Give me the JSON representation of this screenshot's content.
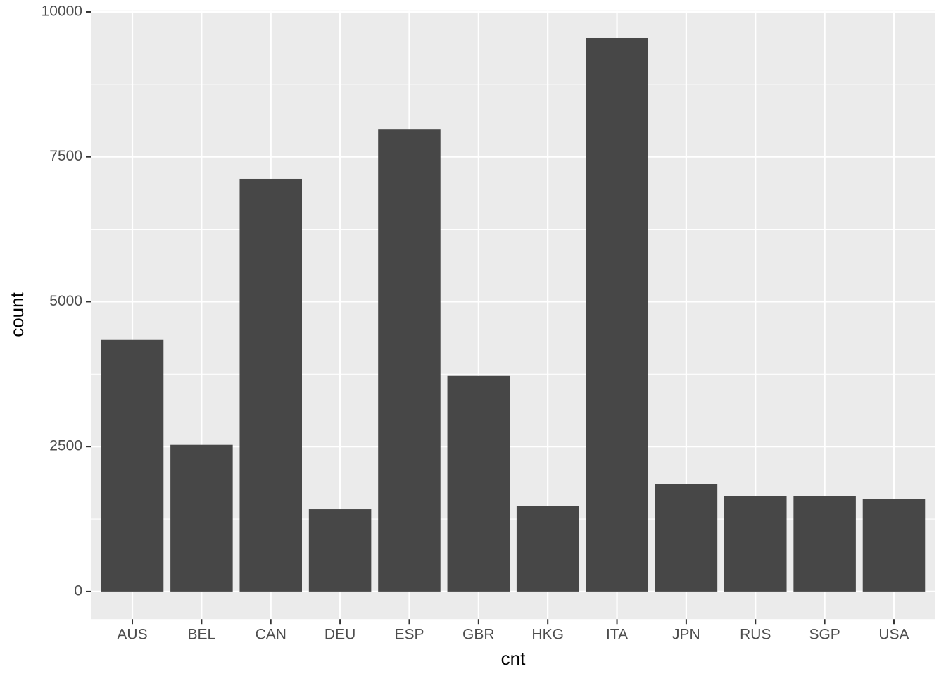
{
  "chart_data": {
    "type": "bar",
    "x_label": "cnt",
    "y_label": "count",
    "categories": [
      "AUS",
      "BEL",
      "CAN",
      "DEU",
      "ESP",
      "GBR",
      "HKG",
      "ITA",
      "JPN",
      "RUS",
      "SGP",
      "USA"
    ],
    "values": [
      4340,
      2530,
      7120,
      1420,
      7980,
      3720,
      1480,
      9550,
      1850,
      1640,
      1640,
      1600
    ],
    "color": "#474747",
    "ylim": [
      -477.5,
      10027.5
    ],
    "yticks": [
      0,
      2500,
      5000,
      7500,
      10000
    ],
    "grid": true,
    "minor_grid": true
  }
}
